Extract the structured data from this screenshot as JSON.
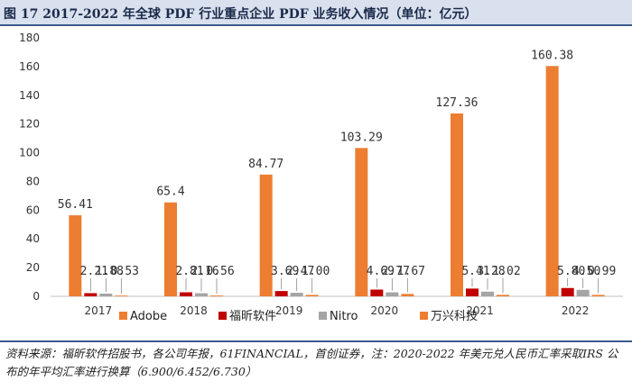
{
  "header": {
    "title": "图 17 2017-2022 年全球 PDF 行业重点企业 PDF 业务收入情况（单位：亿元）"
  },
  "footer": {
    "source": "资料来源：福昕软件招股书，各公司年报，61FINANCIAL，首创证券，注：2020-2022 年美元兑人民币汇率采取IRS 公布的年平均汇率进行换算（6.900/6.452/6.730）"
  },
  "colors": {
    "Adobe": "#ed7d31",
    "福昕软件": "#c00000",
    "Nitro": "#a5a5a5",
    "万兴科技": "#ed7d31"
  },
  "chart_data": {
    "type": "bar",
    "title": "图 17 2017-2022 年全球 PDF 行业重点企业 PDF 业务收入情况（单位：亿元）",
    "categories": [
      "2017",
      "2018",
      "2019",
      "2020",
      "2021",
      "2022"
    ],
    "ylim": [
      0,
      180
    ],
    "yticks": [
      0,
      20,
      40,
      60,
      80,
      100,
      120,
      140,
      160,
      180
    ],
    "grid": false,
    "legend_position": "bottom",
    "series": [
      {
        "name": "Adobe",
        "values": [
          56.41,
          65.4,
          84.77,
          103.29,
          127.36,
          160.38
        ],
        "labels": [
          "56.41",
          "65.4",
          "84.77",
          "103.29",
          "127.36",
          "160.38"
        ]
      },
      {
        "name": "福昕软件",
        "values": [
          2.21,
          2.81,
          3.69,
          4.69,
          5.41,
          5.8
        ],
        "labels": [
          "2.21",
          "2.81",
          "3.69",
          "4.69",
          "5.41",
          "5.80"
        ]
      },
      {
        "name": "Nitro",
        "values": [
          1.88,
          2.16,
          2.47,
          2.77,
          3.28,
          4.5
        ],
        "labels": [
          "1.88",
          "2.16",
          "2.47",
          "2.77",
          "3.28",
          "4.50"
        ]
      },
      {
        "name": "万兴科技",
        "values": [
          0.53,
          0.56,
          1.0,
          1.67,
          1.02,
          0.99
        ],
        "labels": [
          "0.53",
          "0.56",
          "1.00",
          "1.67",
          "1.02",
          "0.99"
        ]
      }
    ]
  }
}
